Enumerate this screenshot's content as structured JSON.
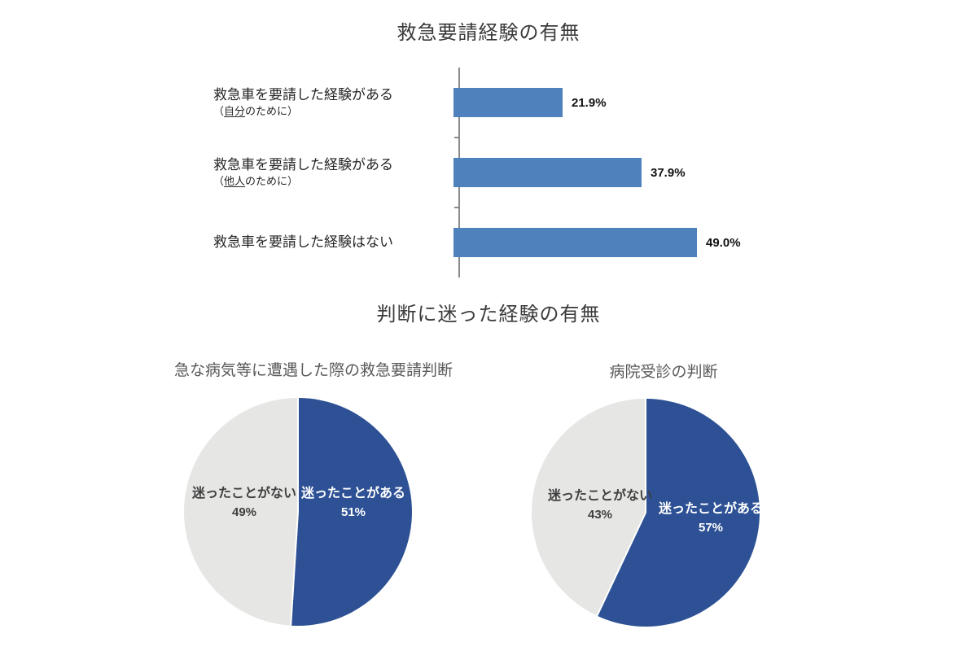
{
  "chart_data": [
    {
      "type": "bar",
      "title": "救急要請経験の有無",
      "orientation": "horizontal",
      "categories": [
        "救急車を要請した経験がある（自分のために）",
        "救急車を要請した経験がある（他人のために）",
        "救急車を要請した経験はない"
      ],
      "values": [
        21.9,
        37.9,
        49.0
      ],
      "value_labels": [
        "21.9%",
        "37.9%",
        "49.0%"
      ],
      "xlim": [
        0,
        60
      ],
      "bar_color": "#4f81bd",
      "axis_color": "#8a8a8a",
      "grid": false,
      "legend": false
    },
    {
      "type": "pie",
      "section_title": "判断に迷った経験の有無",
      "title": "急な病気等に遭遇した際の救急要請判断",
      "labels": [
        "迷ったことがある",
        "迷ったことがない"
      ],
      "values": [
        51,
        49
      ],
      "value_labels": [
        "51%",
        "49%"
      ],
      "colors": [
        "#2d5194",
        "#e6e6e5"
      ],
      "start_angle_deg": 0,
      "direction": "clockwise"
    },
    {
      "type": "pie",
      "title": "病院受診の判断",
      "labels": [
        "迷ったことがある",
        "迷ったことがない"
      ],
      "values": [
        57,
        43
      ],
      "value_labels": [
        "57%",
        "43%"
      ],
      "colors": [
        "#2d5194",
        "#e6e6e5"
      ],
      "start_angle_deg": 0,
      "direction": "clockwise"
    }
  ],
  "ui": {
    "bar_rows": [
      {
        "main": "救急車を要請した経験がある",
        "sub_open": "（",
        "sub_underlined": "自分",
        "sub_rest": "のために）"
      },
      {
        "main": "救急車を要請した経験がある",
        "sub_open": "（",
        "sub_underlined": "他人",
        "sub_rest": "のために）"
      },
      {
        "main": "救急車を要請した経験はない",
        "sub_open": "",
        "sub_underlined": "",
        "sub_rest": ""
      }
    ]
  }
}
